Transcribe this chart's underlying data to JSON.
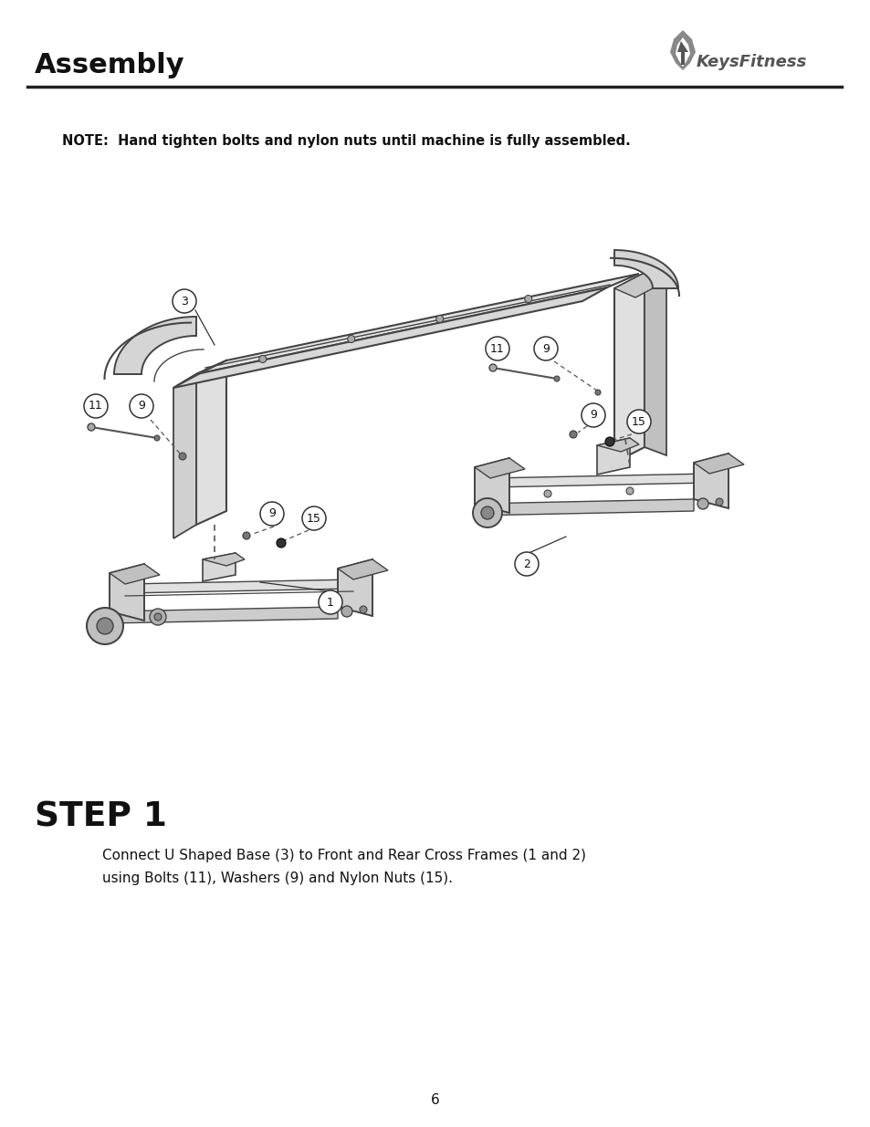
{
  "page_bg": "#ffffff",
  "header_title": "Assembly",
  "logo_text": "KeysFitness",
  "note_text": "NOTE:  Hand tighten bolts and nylon nuts until machine is fully assembled.",
  "step_title": "STEP 1",
  "step_body_line1": "Connect U Shaped Base (3) to Front and Rear Cross Frames (1 and 2)",
  "step_body_line2": "using Bolts (11), Washers (9) and Nylon Nuts (15).",
  "page_number": "6",
  "gray_light": "#e8e8e8",
  "gray_mid": "#cccccc",
  "gray_dark": "#999999",
  "line_color": "#444444",
  "black": "#111111"
}
